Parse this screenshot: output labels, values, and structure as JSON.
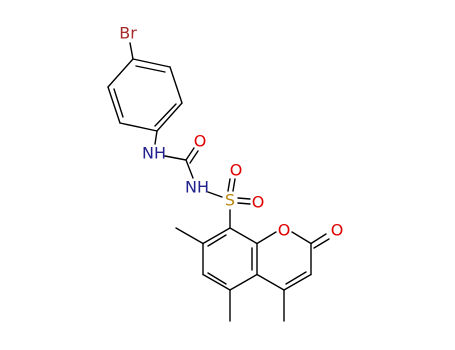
{
  "atoms": [
    {
      "label": "Br"
    },
    {
      "label": "NH"
    },
    {
      "label": "O"
    },
    {
      "label": "NH"
    },
    {
      "label": "S"
    },
    {
      "label": "O"
    },
    {
      "label": "O"
    },
    {
      "label": "O"
    },
    {
      "label": "O"
    }
  ]
}
